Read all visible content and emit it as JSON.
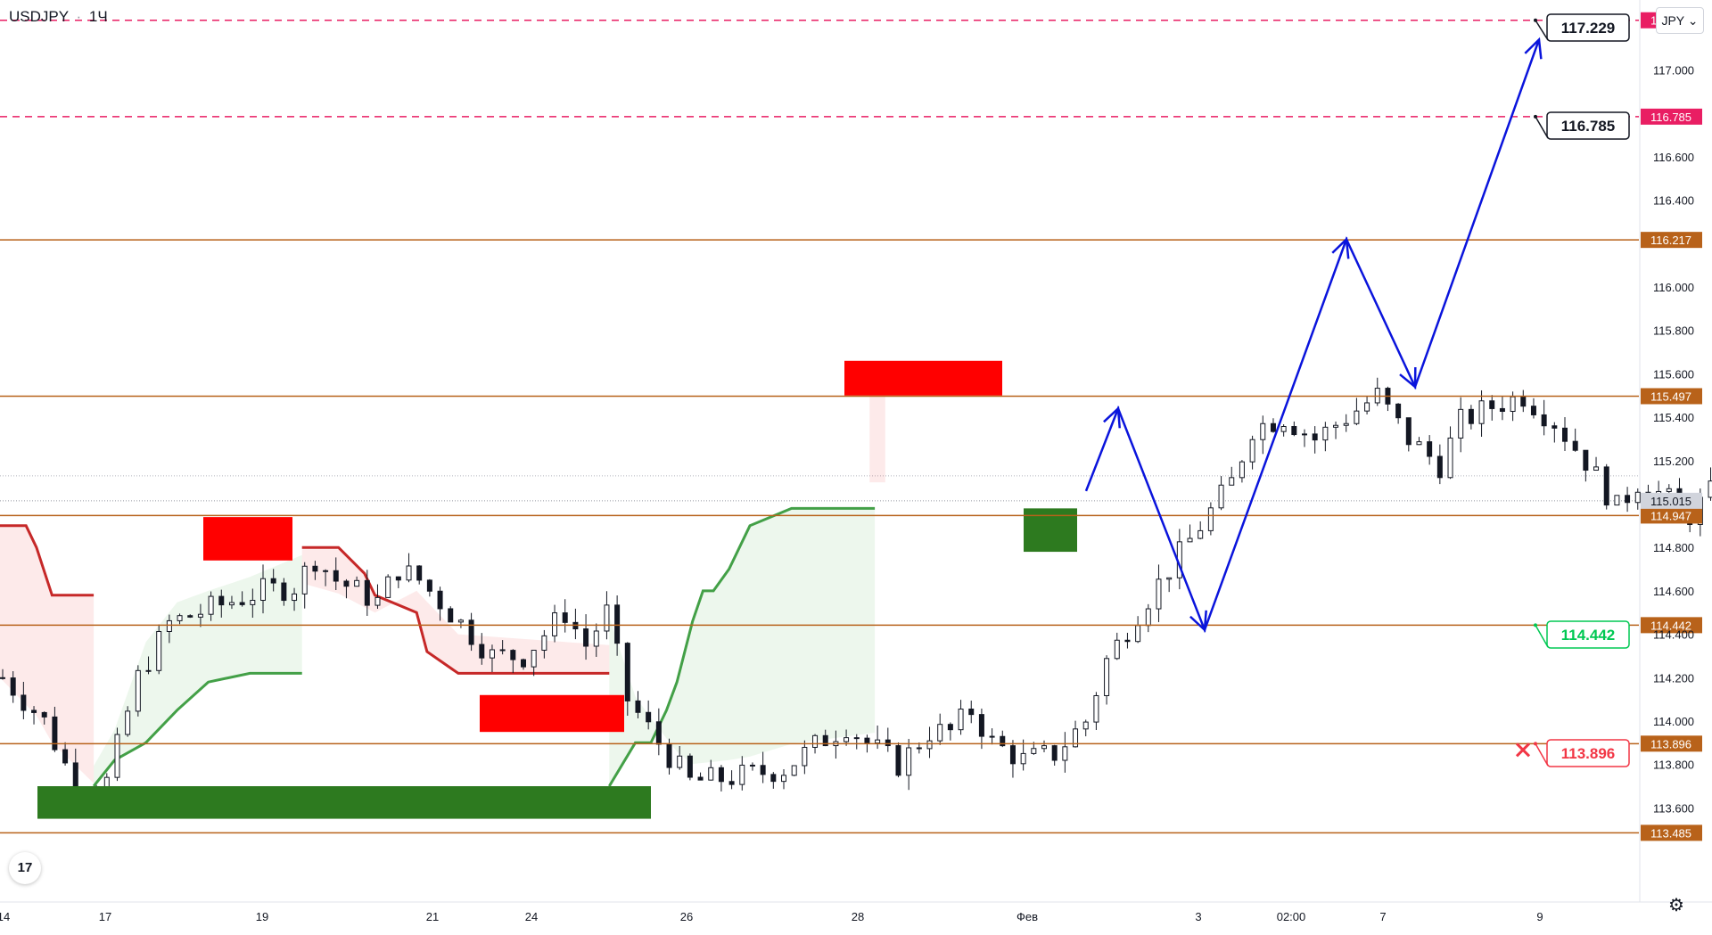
{
  "header": {
    "symbol": "USDJPY",
    "interval": "1Ч",
    "separator": "·"
  },
  "currency_button": {
    "label": "JPY",
    "icon": "chevron-down-icon"
  },
  "footer": {
    "logo_text": "17",
    "settings_icon": "gear-icon"
  },
  "colors": {
    "level_line": "#b8621a",
    "target_line": "#e91e63",
    "forecast_path": "#0a14dc",
    "supply_zone": "#ff0000",
    "demand_zone": "#2d7a1f",
    "candle": "#131722",
    "trend_down": "#c62828",
    "trend_up": "#43a047",
    "label_green": "#00c853",
    "label_red": "#f23645"
  },
  "chart_data": {
    "type": "candlestick",
    "symbol": "USDJPY",
    "interval": "1Ч",
    "ylim": [
      113.4,
      117.4
    ],
    "y_ticks": [
      "117.000",
      "116.600",
      "116.400",
      "116.000",
      "115.800",
      "115.600",
      "115.400",
      "115.200",
      "114.800",
      "114.600",
      "114.400",
      "114.200",
      "114.000",
      "113.800",
      "113.600"
    ],
    "x_ticks": [
      "14",
      "17",
      "19",
      "21",
      "24",
      "26",
      "28",
      "Фев",
      "3",
      "02:00",
      "7",
      "9"
    ],
    "current_price": "115.015",
    "levels": [
      {
        "value": "117.229",
        "style": "dashed-target"
      },
      {
        "value": "116.785",
        "style": "dashed-target"
      },
      {
        "value": "116.217",
        "style": "solid"
      },
      {
        "value": "115.497",
        "style": "solid"
      },
      {
        "value": "114.947",
        "style": "solid"
      },
      {
        "value": "114.442",
        "style": "solid"
      },
      {
        "value": "113.896",
        "style": "solid"
      },
      {
        "value": "113.485",
        "style": "solid"
      }
    ],
    "callouts": [
      {
        "text": "117.229",
        "kind": "target"
      },
      {
        "text": "116.785",
        "kind": "target"
      },
      {
        "text": "114.442",
        "kind": "entry"
      },
      {
        "text": "113.896",
        "kind": "stop"
      }
    ],
    "zones": [
      {
        "type": "supply",
        "from": 114.74,
        "to": 114.94,
        "x": "17.7–19.0"
      },
      {
        "type": "supply",
        "from": 113.95,
        "to": 114.12,
        "x": "22.1–24.9"
      },
      {
        "type": "supply",
        "from": 115.5,
        "to": 115.66,
        "x": "27.9–29.9"
      },
      {
        "type": "demand",
        "from": 113.55,
        "to": 113.7,
        "x": "14.4–25.4"
      },
      {
        "type": "demand",
        "from": 114.78,
        "to": 114.98,
        "x": "Фев (1)"
      }
    ],
    "forecast_path": [
      [
        115.06,
        "1"
      ],
      [
        115.44,
        "1.5"
      ],
      [
        114.42,
        "2.4"
      ],
      [
        116.22,
        "4.8"
      ],
      [
        115.54,
        "5.7"
      ],
      [
        117.14,
        "7.9"
      ]
    ]
  }
}
